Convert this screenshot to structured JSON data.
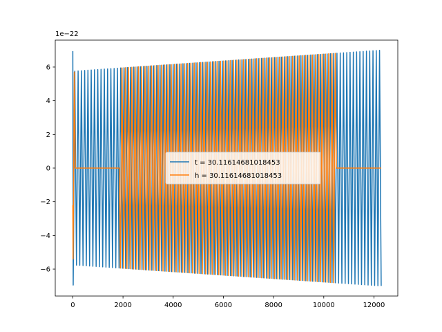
{
  "chart_data": {
    "type": "line",
    "title": "",
    "xlabel": "",
    "ylabel": "",
    "y_scale_label": "1e−22",
    "xlim": [
      -700,
      12950
    ],
    "ylim": [
      -7.6,
      7.6
    ],
    "x_ticks": [
      0,
      2000,
      4000,
      6000,
      8000,
      10000,
      12000
    ],
    "y_ticks": [
      -6,
      -4,
      -2,
      0,
      2,
      4,
      6
    ],
    "x_tick_labels": [
      "0",
      "2000",
      "4000",
      "6000",
      "8000",
      "10000",
      "12000"
    ],
    "y_tick_labels": [
      "−6",
      "−4",
      "−2",
      "0",
      "2",
      "4",
      "6"
    ],
    "grid": false,
    "legend_position": "center",
    "series": [
      {
        "name": "t = 30.11614681018453",
        "color": "#1f77b4",
        "signal": {
          "x_start": 0,
          "x_end": 12288,
          "amplitude_start": 5.75,
          "amplitude_end": 7.0,
          "initial_peak": 6.95,
          "num_cycles": 94,
          "zero_until": 0
        }
      },
      {
        "name": "h = 30.11614681018453",
        "color": "#ff7f0e",
        "signal": {
          "x_start": 0,
          "x_end": 12288,
          "amplitude_start": 5.75,
          "amplitude_end": 7.0,
          "num_cycles": 94,
          "active_from": 0,
          "active_to": 10500,
          "flat_segment": [
            100,
            1850
          ]
        }
      }
    ]
  }
}
